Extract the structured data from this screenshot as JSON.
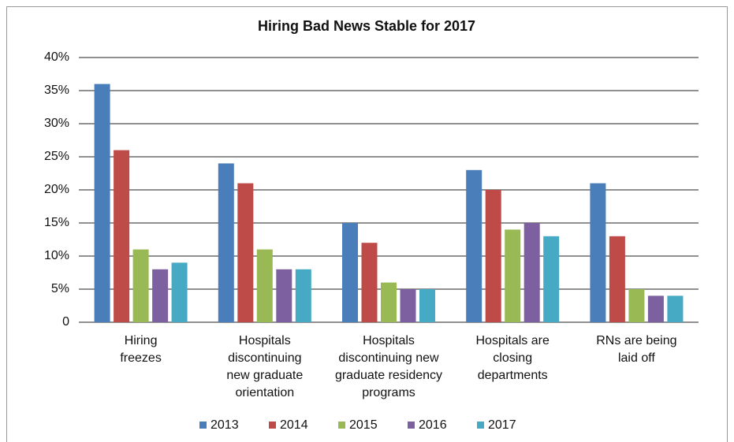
{
  "chart_data": {
    "type": "bar",
    "title": "Hiring Bad News Stable for 2017",
    "categories": [
      [
        "Hiring",
        "freezes"
      ],
      [
        "Hospitals",
        "discontinuing",
        "new graduate",
        "orientation"
      ],
      [
        "Hospitals",
        "discontinuing new",
        "graduate residency",
        "programs"
      ],
      [
        "Hospitals are",
        "closing",
        "departments"
      ],
      [
        "RNs are being",
        "laid off"
      ]
    ],
    "series": [
      {
        "name": "2013",
        "color": "#4a7ebb",
        "values": [
          36,
          24,
          15,
          23,
          21
        ]
      },
      {
        "name": "2014",
        "color": "#be4b48",
        "values": [
          26,
          21,
          12,
          20,
          13
        ]
      },
      {
        "name": "2015",
        "color": "#98b954",
        "values": [
          11,
          11,
          6,
          14,
          5
        ]
      },
      {
        "name": "2016",
        "color": "#7d60a0",
        "values": [
          8,
          8,
          5,
          15,
          4
        ]
      },
      {
        "name": "2017",
        "color": "#46aac5",
        "values": [
          9,
          8,
          5,
          13,
          4
        ]
      }
    ],
    "ylim": [
      0,
      40
    ],
    "yticks": [
      0,
      {
        "value": 5,
        "label": "5%"
      },
      {
        "value": 10,
        "label": "10%"
      },
      {
        "value": 15,
        "label": "15%"
      },
      {
        "value": 20,
        "label": "20%"
      },
      {
        "value": 25,
        "label": "25%"
      },
      {
        "value": 30,
        "label": "30%"
      },
      {
        "value": 35,
        "label": "35%"
      },
      {
        "value": 40,
        "label": "40%"
      }
    ],
    "grid": true,
    "legend": "bottom"
  }
}
